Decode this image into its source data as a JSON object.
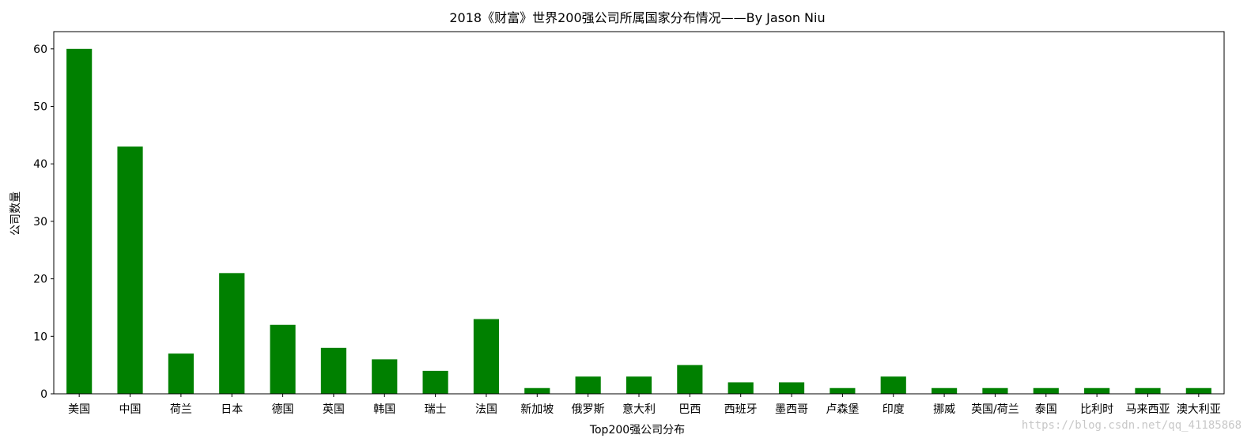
{
  "chart_data": {
    "type": "bar",
    "title": "2018《财富》世界200强公司所属国家分布情况——By Jason Niu",
    "xlabel": "Top200强公司分布",
    "ylabel": "公司数量",
    "categories": [
      "美国",
      "中国",
      "荷兰",
      "日本",
      "德国",
      "英国",
      "韩国",
      "瑞士",
      "法国",
      "新加坡",
      "俄罗斯",
      "意大利",
      "巴西",
      "西班牙",
      "墨西哥",
      "卢森堡",
      "印度",
      "挪威",
      "英国/荷兰",
      "泰国",
      "比利时",
      "马来西亚",
      "澳大利亚"
    ],
    "values": [
      60,
      43,
      7,
      21,
      12,
      8,
      6,
      4,
      13,
      1,
      3,
      3,
      5,
      2,
      2,
      1,
      3,
      1,
      1,
      1,
      1,
      1,
      1
    ],
    "yticks": [
      0,
      10,
      20,
      30,
      40,
      50,
      60
    ],
    "ylim": [
      0,
      63
    ],
    "grid": false,
    "legend": "none",
    "bar_color": "#008000"
  },
  "watermark": "https://blog.csdn.net/qq_41185868"
}
